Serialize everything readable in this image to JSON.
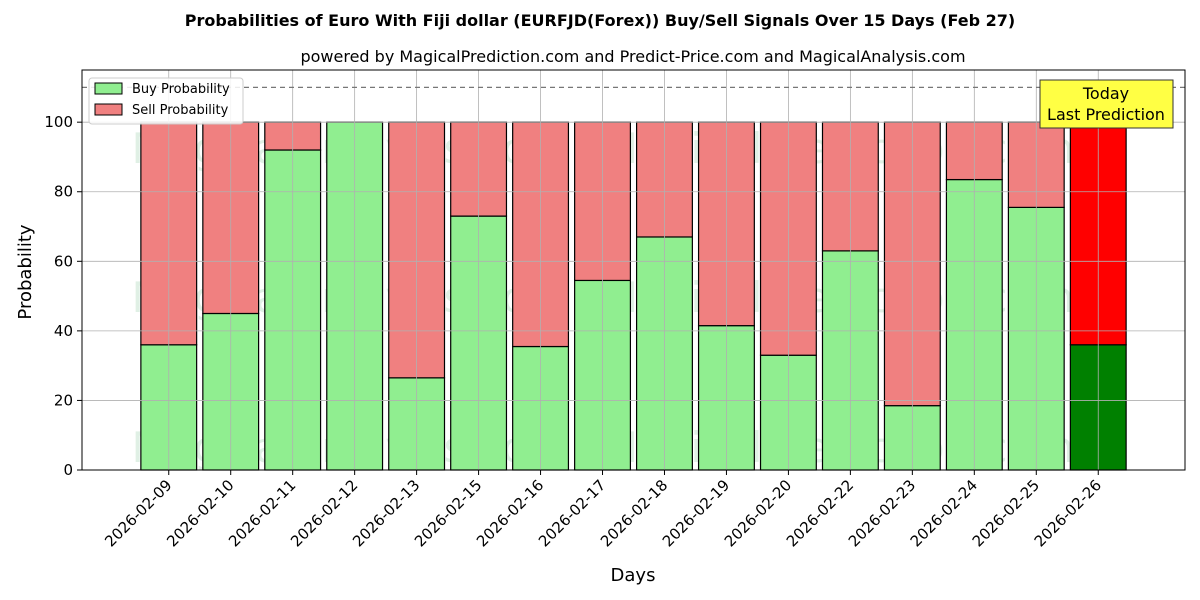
{
  "chart_data": {
    "type": "bar",
    "stacked": true,
    "title": "Probabilities of Euro With Fiji dollar (EURFJD(Forex)) Buy/Sell Signals Over 15 Days (Feb 27)",
    "subtitle": "powered by MagicalPrediction.com and Predict-Price.com and MagicalAnalysis.com",
    "xlabel": "Days",
    "ylabel": "Probability",
    "ylim": [
      0,
      115
    ],
    "yticks": [
      0,
      20,
      40,
      60,
      80,
      100
    ],
    "reference_line": 110,
    "grid": true,
    "legend_position": "top-left",
    "categories": [
      "2026-02-09",
      "2026-02-10",
      "2026-02-11",
      "2026-02-12",
      "2026-02-13",
      "2026-02-15",
      "2026-02-16",
      "2026-02-17",
      "2026-02-18",
      "2026-02-19",
      "2026-02-20",
      "2026-02-22",
      "2026-02-23",
      "2026-02-24",
      "2026-02-25",
      "2026-02-26"
    ],
    "series": [
      {
        "name": "Buy Probability",
        "color": "#90ee90",
        "highlight_color": "#008000",
        "values": [
          36,
          45,
          92,
          100,
          26.5,
          73,
          35.5,
          54.5,
          67,
          41.5,
          33,
          63,
          18.5,
          83.5,
          75.5,
          36
        ]
      },
      {
        "name": "Sell Probability",
        "color": "#f08080",
        "highlight_color": "#ff0000",
        "values": [
          64,
          55,
          8,
          0,
          73.5,
          27,
          64.5,
          45.5,
          33,
          58.5,
          67,
          37,
          81.5,
          16.5,
          24.5,
          64
        ]
      }
    ],
    "highlight_index": 15,
    "annotation": {
      "lines": [
        "Today",
        "Last Prediction"
      ],
      "color": "#ffff44"
    },
    "watermarks": [
      "MagicalAnalysis.com",
      "MagicalPrediction.com"
    ]
  }
}
